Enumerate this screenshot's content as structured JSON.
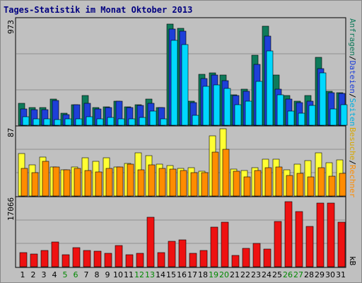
{
  "title": "Tages-Statistik im Monat Oktober 2013",
  "colors": {
    "anfragen": "#0e7a5a",
    "dateien": "#1e3fd8",
    "seiten": "#00d8ff",
    "besuche": "#ffff33",
    "rechner": "#ff8c00",
    "kb": "#ee1111",
    "panel": "#c0c0c0",
    "title": "#000080",
    "weekend": "#008800"
  },
  "labels": {
    "top_max": "973",
    "mid_max": "87",
    "bot_max": "17066",
    "anfragen": "Anfragen",
    "dateien": "Dateien",
    "seiten": "Seiten",
    "besuche": "Besuche",
    "rechner": "Rechner",
    "kb": "kB",
    "sep": "/"
  },
  "chart_data": [
    {
      "type": "bar",
      "x": [
        1,
        2,
        3,
        4,
        5,
        6,
        7,
        8,
        9,
        10,
        11,
        12,
        13,
        14,
        15,
        16,
        17,
        18,
        19,
        20,
        21,
        22,
        23,
        24,
        25,
        26,
        27,
        28,
        29,
        30,
        31
      ],
      "ylim": [
        0,
        973
      ],
      "series": [
        {
          "name": "Anfragen",
          "values": [
            200,
            160,
            160,
            240,
            110,
            190,
            270,
            160,
            170,
            220,
            170,
            190,
            240,
            160,
            930,
            890,
            220,
            470,
            480,
            460,
            280,
            330,
            640,
            910,
            460,
            270,
            220,
            270,
            620,
            310,
            300
          ]
        },
        {
          "name": "Dateien",
          "values": [
            150,
            140,
            140,
            230,
            100,
            190,
            200,
            150,
            160,
            220,
            160,
            180,
            200,
            160,
            880,
            860,
            210,
            430,
            460,
            410,
            270,
            310,
            560,
            820,
            330,
            240,
            210,
            220,
            520,
            300,
            290
          ]
        },
        {
          "name": "Seiten",
          "values": [
            80,
            60,
            60,
            50,
            60,
            60,
            80,
            60,
            70,
            60,
            60,
            70,
            130,
            60,
            780,
            740,
            90,
            360,
            370,
            340,
            190,
            220,
            400,
            680,
            280,
            130,
            110,
            180,
            480,
            150,
            190
          ]
        }
      ]
    },
    {
      "type": "bar",
      "x": [
        1,
        2,
        3,
        4,
        5,
        6,
        7,
        8,
        9,
        10,
        11,
        12,
        13,
        14,
        15,
        16,
        17,
        18,
        19,
        20,
        21,
        22,
        23,
        24,
        25,
        26,
        27,
        28,
        29,
        30,
        31
      ],
      "ylim": [
        0,
        87
      ],
      "series": [
        {
          "name": "Besuche",
          "values": [
            55,
            40,
            50,
            38,
            34,
            38,
            49,
            45,
            49,
            38,
            42,
            56,
            52,
            41,
            39,
            36,
            37,
            32,
            78,
            87,
            35,
            33,
            37,
            48,
            48,
            34,
            41,
            46,
            56,
            43,
            47
          ]
        },
        {
          "name": "Rechner",
          "values": [
            36,
            30,
            45,
            38,
            34,
            36,
            33,
            31,
            36,
            38,
            41,
            34,
            40,
            36,
            35,
            33,
            30,
            30,
            57,
            60,
            32,
            25,
            33,
            37,
            38,
            27,
            29,
            25,
            37,
            26,
            29
          ]
        }
      ]
    },
    {
      "type": "bar",
      "x": [
        1,
        2,
        3,
        4,
        5,
        6,
        7,
        8,
        9,
        10,
        11,
        12,
        13,
        14,
        15,
        16,
        17,
        18,
        19,
        20,
        21,
        22,
        23,
        24,
        25,
        26,
        27,
        28,
        29,
        30,
        31
      ],
      "ylim": [
        0,
        17066
      ],
      "series": [
        {
          "name": "kB",
          "values": [
            3600,
            3300,
            4200,
            6300,
            3100,
            4800,
            4100,
            3900,
            3500,
            5400,
            3000,
            3400,
            12500,
            3600,
            6400,
            6900,
            3400,
            4200,
            10100,
            11300,
            2800,
            4700,
            5900,
            4500,
            11500,
            16600,
            14000,
            10200,
            16100,
            16100,
            11400
          ]
        }
      ]
    }
  ]
}
